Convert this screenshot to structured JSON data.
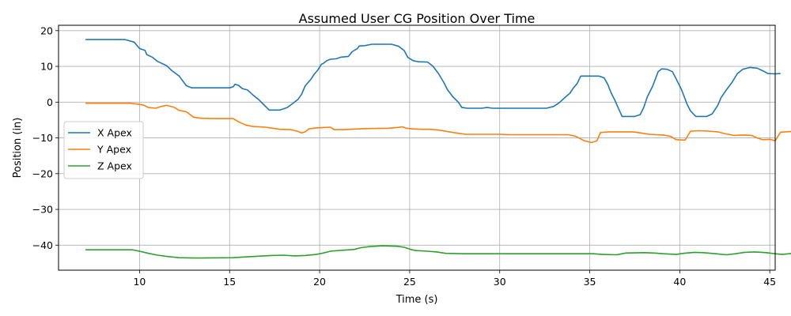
{
  "chart_data": {
    "type": "line",
    "title": "Assumed User CG Position Over Time",
    "xlabel": "Time (s)",
    "ylabel": "Position (in)",
    "xlim": [
      5.5,
      45.3
    ],
    "ylim": [
      -47,
      21.5
    ],
    "xticks": [
      10,
      15,
      20,
      25,
      30,
      35,
      40,
      45
    ],
    "yticks": [
      -40,
      -30,
      -20,
      -10,
      0,
      10,
      20
    ],
    "grid": true,
    "legend": "center-left",
    "series": [
      {
        "name": "X Apex",
        "color": "#1f77b4",
        "points": [
          [
            7.0,
            17.5
          ],
          [
            9.2,
            17.5
          ],
          [
            9.7,
            16.8
          ],
          [
            10.0,
            15.0
          ],
          [
            10.3,
            14.5
          ],
          [
            10.4,
            13.3
          ],
          [
            10.7,
            12.6
          ],
          [
            11.0,
            11.4
          ],
          [
            11.5,
            10.2
          ],
          [
            11.8,
            8.8
          ],
          [
            12.2,
            7.3
          ],
          [
            12.6,
            4.6
          ],
          [
            12.9,
            4.0
          ],
          [
            13.3,
            4.0
          ],
          [
            15.0,
            4.0
          ],
          [
            15.2,
            4.3
          ],
          [
            15.3,
            5.0
          ],
          [
            15.5,
            4.7
          ],
          [
            15.7,
            3.8
          ],
          [
            16.0,
            3.4
          ],
          [
            16.3,
            2.0
          ],
          [
            16.6,
            0.8
          ],
          [
            16.9,
            -0.7
          ],
          [
            17.2,
            -2.2
          ],
          [
            17.8,
            -2.2
          ],
          [
            18.2,
            -1.5
          ],
          [
            18.5,
            -0.4
          ],
          [
            18.8,
            0.8
          ],
          [
            19.0,
            2.2
          ],
          [
            19.2,
            4.6
          ],
          [
            19.5,
            6.3
          ],
          [
            19.7,
            7.8
          ],
          [
            19.9,
            9.0
          ],
          [
            20.1,
            10.6
          ],
          [
            20.2,
            10.8
          ],
          [
            20.4,
            11.6
          ],
          [
            20.6,
            12.0
          ],
          [
            20.9,
            12.1
          ],
          [
            21.2,
            12.6
          ],
          [
            21.6,
            12.8
          ],
          [
            21.8,
            14.1
          ],
          [
            22.1,
            15.0
          ],
          [
            22.2,
            15.7
          ],
          [
            22.5,
            15.8
          ],
          [
            22.9,
            16.2
          ],
          [
            24.0,
            16.2
          ],
          [
            24.4,
            15.6
          ],
          [
            24.7,
            14.4
          ],
          [
            24.9,
            12.5
          ],
          [
            25.2,
            11.6
          ],
          [
            25.5,
            11.3
          ],
          [
            26.0,
            11.2
          ],
          [
            26.3,
            10.0
          ],
          [
            26.6,
            8.0
          ],
          [
            26.9,
            5.5
          ],
          [
            27.1,
            3.5
          ],
          [
            27.4,
            1.5
          ],
          [
            27.7,
            0.0
          ],
          [
            27.9,
            -1.5
          ],
          [
            28.2,
            -1.7
          ],
          [
            29.0,
            -1.7
          ],
          [
            29.3,
            -1.5
          ],
          [
            29.6,
            -1.7
          ],
          [
            32.6,
            -1.7
          ],
          [
            33.0,
            -1.2
          ],
          [
            33.3,
            -0.2
          ],
          [
            33.6,
            1.2
          ],
          [
            33.9,
            2.5
          ],
          [
            34.1,
            4.0
          ],
          [
            34.3,
            5.2
          ],
          [
            34.5,
            7.3
          ],
          [
            35.5,
            7.3
          ],
          [
            35.8,
            6.8
          ],
          [
            36.0,
            5.0
          ],
          [
            36.2,
            2.5
          ],
          [
            36.4,
            0.5
          ],
          [
            36.6,
            -1.8
          ],
          [
            36.8,
            -4.0
          ],
          [
            37.5,
            -4.0
          ],
          [
            37.8,
            -3.5
          ],
          [
            38.0,
            -1.5
          ],
          [
            38.2,
            1.5
          ],
          [
            38.5,
            4.5
          ],
          [
            38.8,
            8.5
          ],
          [
            39.0,
            9.3
          ],
          [
            39.3,
            9.2
          ],
          [
            39.6,
            8.5
          ],
          [
            39.8,
            6.5
          ],
          [
            40.1,
            3.5
          ],
          [
            40.4,
            -0.5
          ],
          [
            40.6,
            -2.5
          ],
          [
            40.9,
            -4.0
          ],
          [
            41.5,
            -4.0
          ],
          [
            41.8,
            -3.3
          ],
          [
            42.1,
            -1.0
          ],
          [
            42.3,
            1.3
          ],
          [
            42.6,
            3.5
          ],
          [
            42.9,
            5.5
          ],
          [
            43.2,
            8.0
          ],
          [
            43.5,
            9.2
          ],
          [
            43.9,
            9.7
          ],
          [
            44.3,
            9.5
          ],
          [
            44.6,
            8.8
          ],
          [
            44.9,
            8.0
          ],
          [
            45.3,
            7.9
          ],
          [
            45.6,
            8.0
          ]
        ]
      },
      {
        "name": "Y Apex",
        "color": "#ff7f0e",
        "points": [
          [
            7.0,
            -0.3
          ],
          [
            9.5,
            -0.3
          ],
          [
            9.8,
            -0.5
          ],
          [
            10.2,
            -0.8
          ],
          [
            10.5,
            -1.5
          ],
          [
            10.9,
            -1.7
          ],
          [
            11.2,
            -1.2
          ],
          [
            11.5,
            -0.9
          ],
          [
            11.9,
            -1.4
          ],
          [
            12.2,
            -2.3
          ],
          [
            12.6,
            -2.7
          ],
          [
            13.0,
            -4.2
          ],
          [
            13.4,
            -4.5
          ],
          [
            14.0,
            -4.6
          ],
          [
            15.2,
            -4.6
          ],
          [
            15.5,
            -5.5
          ],
          [
            15.9,
            -6.4
          ],
          [
            16.3,
            -6.8
          ],
          [
            17.0,
            -7.0
          ],
          [
            17.4,
            -7.3
          ],
          [
            17.8,
            -7.6
          ],
          [
            18.4,
            -7.7
          ],
          [
            18.8,
            -8.2
          ],
          [
            19.0,
            -8.6
          ],
          [
            19.2,
            -8.3
          ],
          [
            19.4,
            -7.5
          ],
          [
            19.8,
            -7.2
          ],
          [
            20.2,
            -7.1
          ],
          [
            20.6,
            -7.0
          ],
          [
            20.8,
            -7.7
          ],
          [
            21.3,
            -7.7
          ],
          [
            22.5,
            -7.4
          ],
          [
            23.8,
            -7.3
          ],
          [
            24.3,
            -7.1
          ],
          [
            24.6,
            -6.9
          ],
          [
            24.8,
            -7.3
          ],
          [
            25.2,
            -7.5
          ],
          [
            25.7,
            -7.6
          ],
          [
            26.1,
            -7.6
          ],
          [
            26.6,
            -7.8
          ],
          [
            27.2,
            -8.3
          ],
          [
            27.7,
            -8.7
          ],
          [
            28.1,
            -9.0
          ],
          [
            30.0,
            -9.0
          ],
          [
            30.5,
            -9.1
          ],
          [
            33.8,
            -9.1
          ],
          [
            34.2,
            -9.5
          ],
          [
            34.7,
            -10.8
          ],
          [
            35.1,
            -11.3
          ],
          [
            35.4,
            -10.8
          ],
          [
            35.6,
            -8.5
          ],
          [
            36.0,
            -8.3
          ],
          [
            37.4,
            -8.3
          ],
          [
            37.8,
            -8.6
          ],
          [
            38.3,
            -9.0
          ],
          [
            38.7,
            -9.1
          ],
          [
            39.1,
            -9.2
          ],
          [
            39.5,
            -9.6
          ],
          [
            39.8,
            -10.5
          ],
          [
            40.3,
            -10.6
          ],
          [
            40.6,
            -8.1
          ],
          [
            41.1,
            -8.0
          ],
          [
            41.6,
            -8.1
          ],
          [
            42.1,
            -8.3
          ],
          [
            42.5,
            -8.8
          ],
          [
            43.0,
            -9.3
          ],
          [
            43.5,
            -9.2
          ],
          [
            44.0,
            -9.3
          ],
          [
            44.3,
            -10.0
          ],
          [
            44.6,
            -10.5
          ],
          [
            45.0,
            -10.4
          ],
          [
            45.3,
            -10.8
          ],
          [
            45.6,
            -8.4
          ],
          [
            46.2,
            -8.2
          ],
          [
            46.8,
            -8.3
          ]
        ]
      },
      {
        "name": "Z Apex",
        "color": "#2ca02c",
        "points": [
          [
            7.0,
            -41.3
          ],
          [
            9.6,
            -41.3
          ],
          [
            10.0,
            -41.7
          ],
          [
            10.5,
            -42.3
          ],
          [
            11.0,
            -42.8
          ],
          [
            11.6,
            -43.2
          ],
          [
            12.2,
            -43.5
          ],
          [
            13.0,
            -43.6
          ],
          [
            15.2,
            -43.5
          ],
          [
            15.8,
            -43.3
          ],
          [
            16.5,
            -43.1
          ],
          [
            17.3,
            -42.9
          ],
          [
            18.0,
            -42.8
          ],
          [
            18.6,
            -43.0
          ],
          [
            19.2,
            -42.9
          ],
          [
            19.8,
            -42.6
          ],
          [
            20.2,
            -42.2
          ],
          [
            20.6,
            -41.7
          ],
          [
            21.3,
            -41.4
          ],
          [
            21.9,
            -41.2
          ],
          [
            22.3,
            -40.7
          ],
          [
            22.8,
            -40.4
          ],
          [
            23.5,
            -40.2
          ],
          [
            24.3,
            -40.3
          ],
          [
            24.7,
            -40.6
          ],
          [
            25.0,
            -41.1
          ],
          [
            25.3,
            -41.5
          ],
          [
            26.0,
            -41.7
          ],
          [
            26.5,
            -41.9
          ],
          [
            27.0,
            -42.3
          ],
          [
            28.0,
            -42.4
          ],
          [
            35.2,
            -42.4
          ],
          [
            35.7,
            -42.6
          ],
          [
            36.5,
            -42.7
          ],
          [
            37.0,
            -42.2
          ],
          [
            38.0,
            -42.1
          ],
          [
            38.6,
            -42.2
          ],
          [
            39.1,
            -42.4
          ],
          [
            39.8,
            -42.6
          ],
          [
            40.2,
            -42.3
          ],
          [
            40.8,
            -42.0
          ],
          [
            41.3,
            -42.1
          ],
          [
            42.0,
            -42.4
          ],
          [
            42.6,
            -42.7
          ],
          [
            43.1,
            -42.4
          ],
          [
            43.6,
            -42.0
          ],
          [
            44.2,
            -41.9
          ],
          [
            44.8,
            -42.1
          ],
          [
            45.3,
            -42.4
          ],
          [
            45.7,
            -42.6
          ],
          [
            46.3,
            -42.3
          ],
          [
            46.8,
            -42.0
          ]
        ]
      }
    ]
  }
}
